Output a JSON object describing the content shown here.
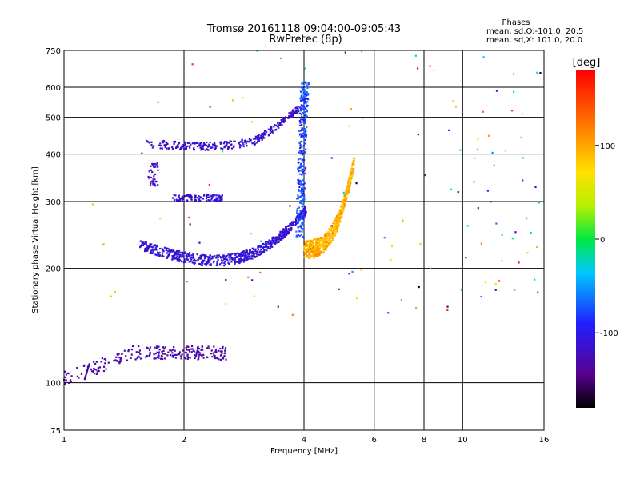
{
  "header": {
    "title_line1": "Tromsø 20161118 09:04:00-09:05:43",
    "title_line2": "RwPretec (8p)"
  },
  "phases_box": {
    "heading": "Phases",
    "line_o": "mean, sd,O:-101.0, 20.5",
    "line_x": "mean, sd,X: 101.0, 20.0"
  },
  "colorbar": {
    "unit_label": "[deg]",
    "tick_labels": [
      "100",
      "0",
      "-100"
    ],
    "range": [
      -180,
      180
    ]
  },
  "chart_data": {
    "type": "scatter",
    "title": "Tromsø 20161118 09:04:00-09:05:43",
    "subtitle": "RwPretec (8p)",
    "xlabel": "Frequency [MHz]",
    "ylabel": "Stationary phase Virtual Height [km]",
    "xscale": "log",
    "yscale": "log",
    "xlim": [
      1,
      16
    ],
    "ylim": [
      75,
      750
    ],
    "x_ticks": [
      1,
      2,
      4,
      6,
      8,
      10,
      16
    ],
    "x_tick_labels": [
      "1",
      "2",
      "4",
      "6",
      "8",
      "10",
      "16"
    ],
    "y_ticks": [
      75,
      100,
      200,
      300,
      400,
      500,
      600,
      750
    ],
    "y_tick_labels": [
      "75",
      "100",
      "200",
      "300",
      "400",
      "500",
      "600",
      "750"
    ],
    "x_gridlines": [
      2,
      4,
      6,
      8,
      10
    ],
    "y_gridlines": [
      100,
      200,
      300,
      400,
      500,
      600
    ],
    "grid": true,
    "color_encodes": "phase [deg]",
    "traces": [
      {
        "name_hint": "E-layer trace",
        "x_range": [
          1.0,
          2.55
        ],
        "y_range": [
          100,
          125
        ],
        "phase": -125
      },
      {
        "name_hint": "F1 O-mode",
        "x_range": [
          1.55,
          4.05
        ],
        "y_range": [
          205,
          270
        ],
        "phase": -115
      },
      {
        "name_hint": "F2 O-mode",
        "x_range": [
          3.8,
          4.05
        ],
        "y_range": [
          240,
          620
        ],
        "phase": -90
      },
      {
        "name_hint": "F2 X-mode",
        "x_range": [
          4.0,
          5.35
        ],
        "y_range": [
          225,
          390
        ],
        "phase": 100
      },
      {
        "name_hint": "Upper multi-hop",
        "x_range": [
          1.6,
          3.9
        ],
        "y_range": [
          420,
          470
        ],
        "phase": -115
      },
      {
        "name_hint": "Mid trace",
        "x_range": [
          1.85,
          2.5
        ],
        "y_range": [
          305,
          315
        ],
        "phase": -110
      }
    ]
  }
}
